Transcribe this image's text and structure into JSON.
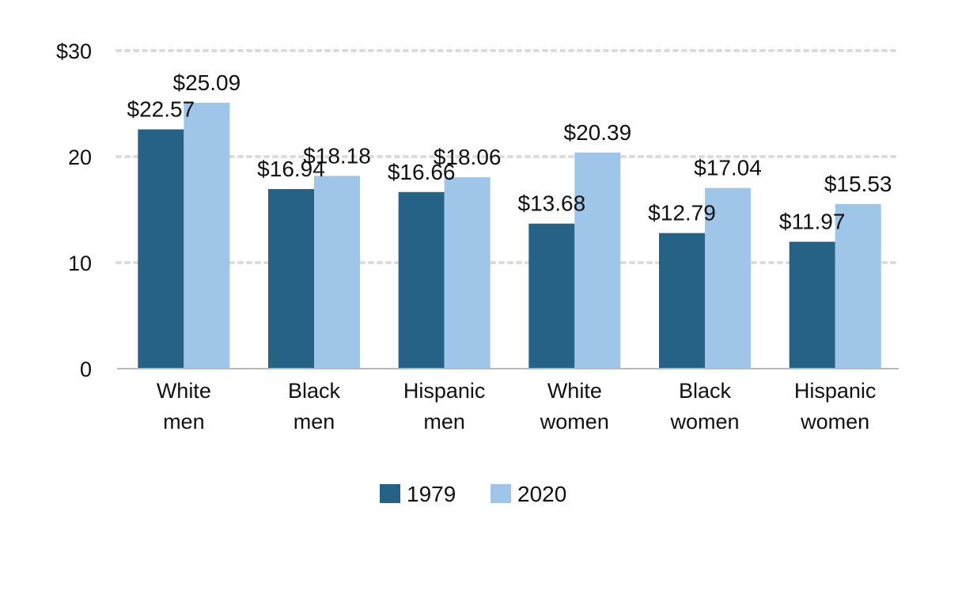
{
  "chart_data": {
    "type": "bar",
    "categories": [
      [
        "White",
        "men"
      ],
      [
        "Black",
        "men"
      ],
      [
        "Hispanic",
        "men"
      ],
      [
        "White",
        "women"
      ],
      [
        "Black",
        "women"
      ],
      [
        "Hispanic",
        "women"
      ]
    ],
    "series": [
      {
        "name": "1979",
        "color": "#256285",
        "values": [
          22.57,
          16.94,
          16.66,
          13.68,
          12.79,
          11.97
        ],
        "labels": [
          "$22.57",
          "$16.94",
          "$16.66",
          "$13.68",
          "$12.79",
          "$11.97"
        ]
      },
      {
        "name": "2020",
        "color": "#9fc5e8",
        "values": [
          25.09,
          18.18,
          18.06,
          20.39,
          17.04,
          15.53
        ],
        "labels": [
          "$25.09",
          "$18.18",
          "$18.06",
          "$20.39",
          "$17.04",
          "$15.53"
        ]
      }
    ],
    "y_ticks": [
      {
        "value": 0,
        "label": "0"
      },
      {
        "value": 10,
        "label": "10"
      },
      {
        "value": 20,
        "label": "20"
      },
      {
        "value": 30,
        "label": "$30"
      }
    ],
    "ylim": [
      0,
      30
    ],
    "grid": true,
    "legend_position": "bottom-center",
    "title": "",
    "xlabel": "",
    "ylabel": ""
  }
}
